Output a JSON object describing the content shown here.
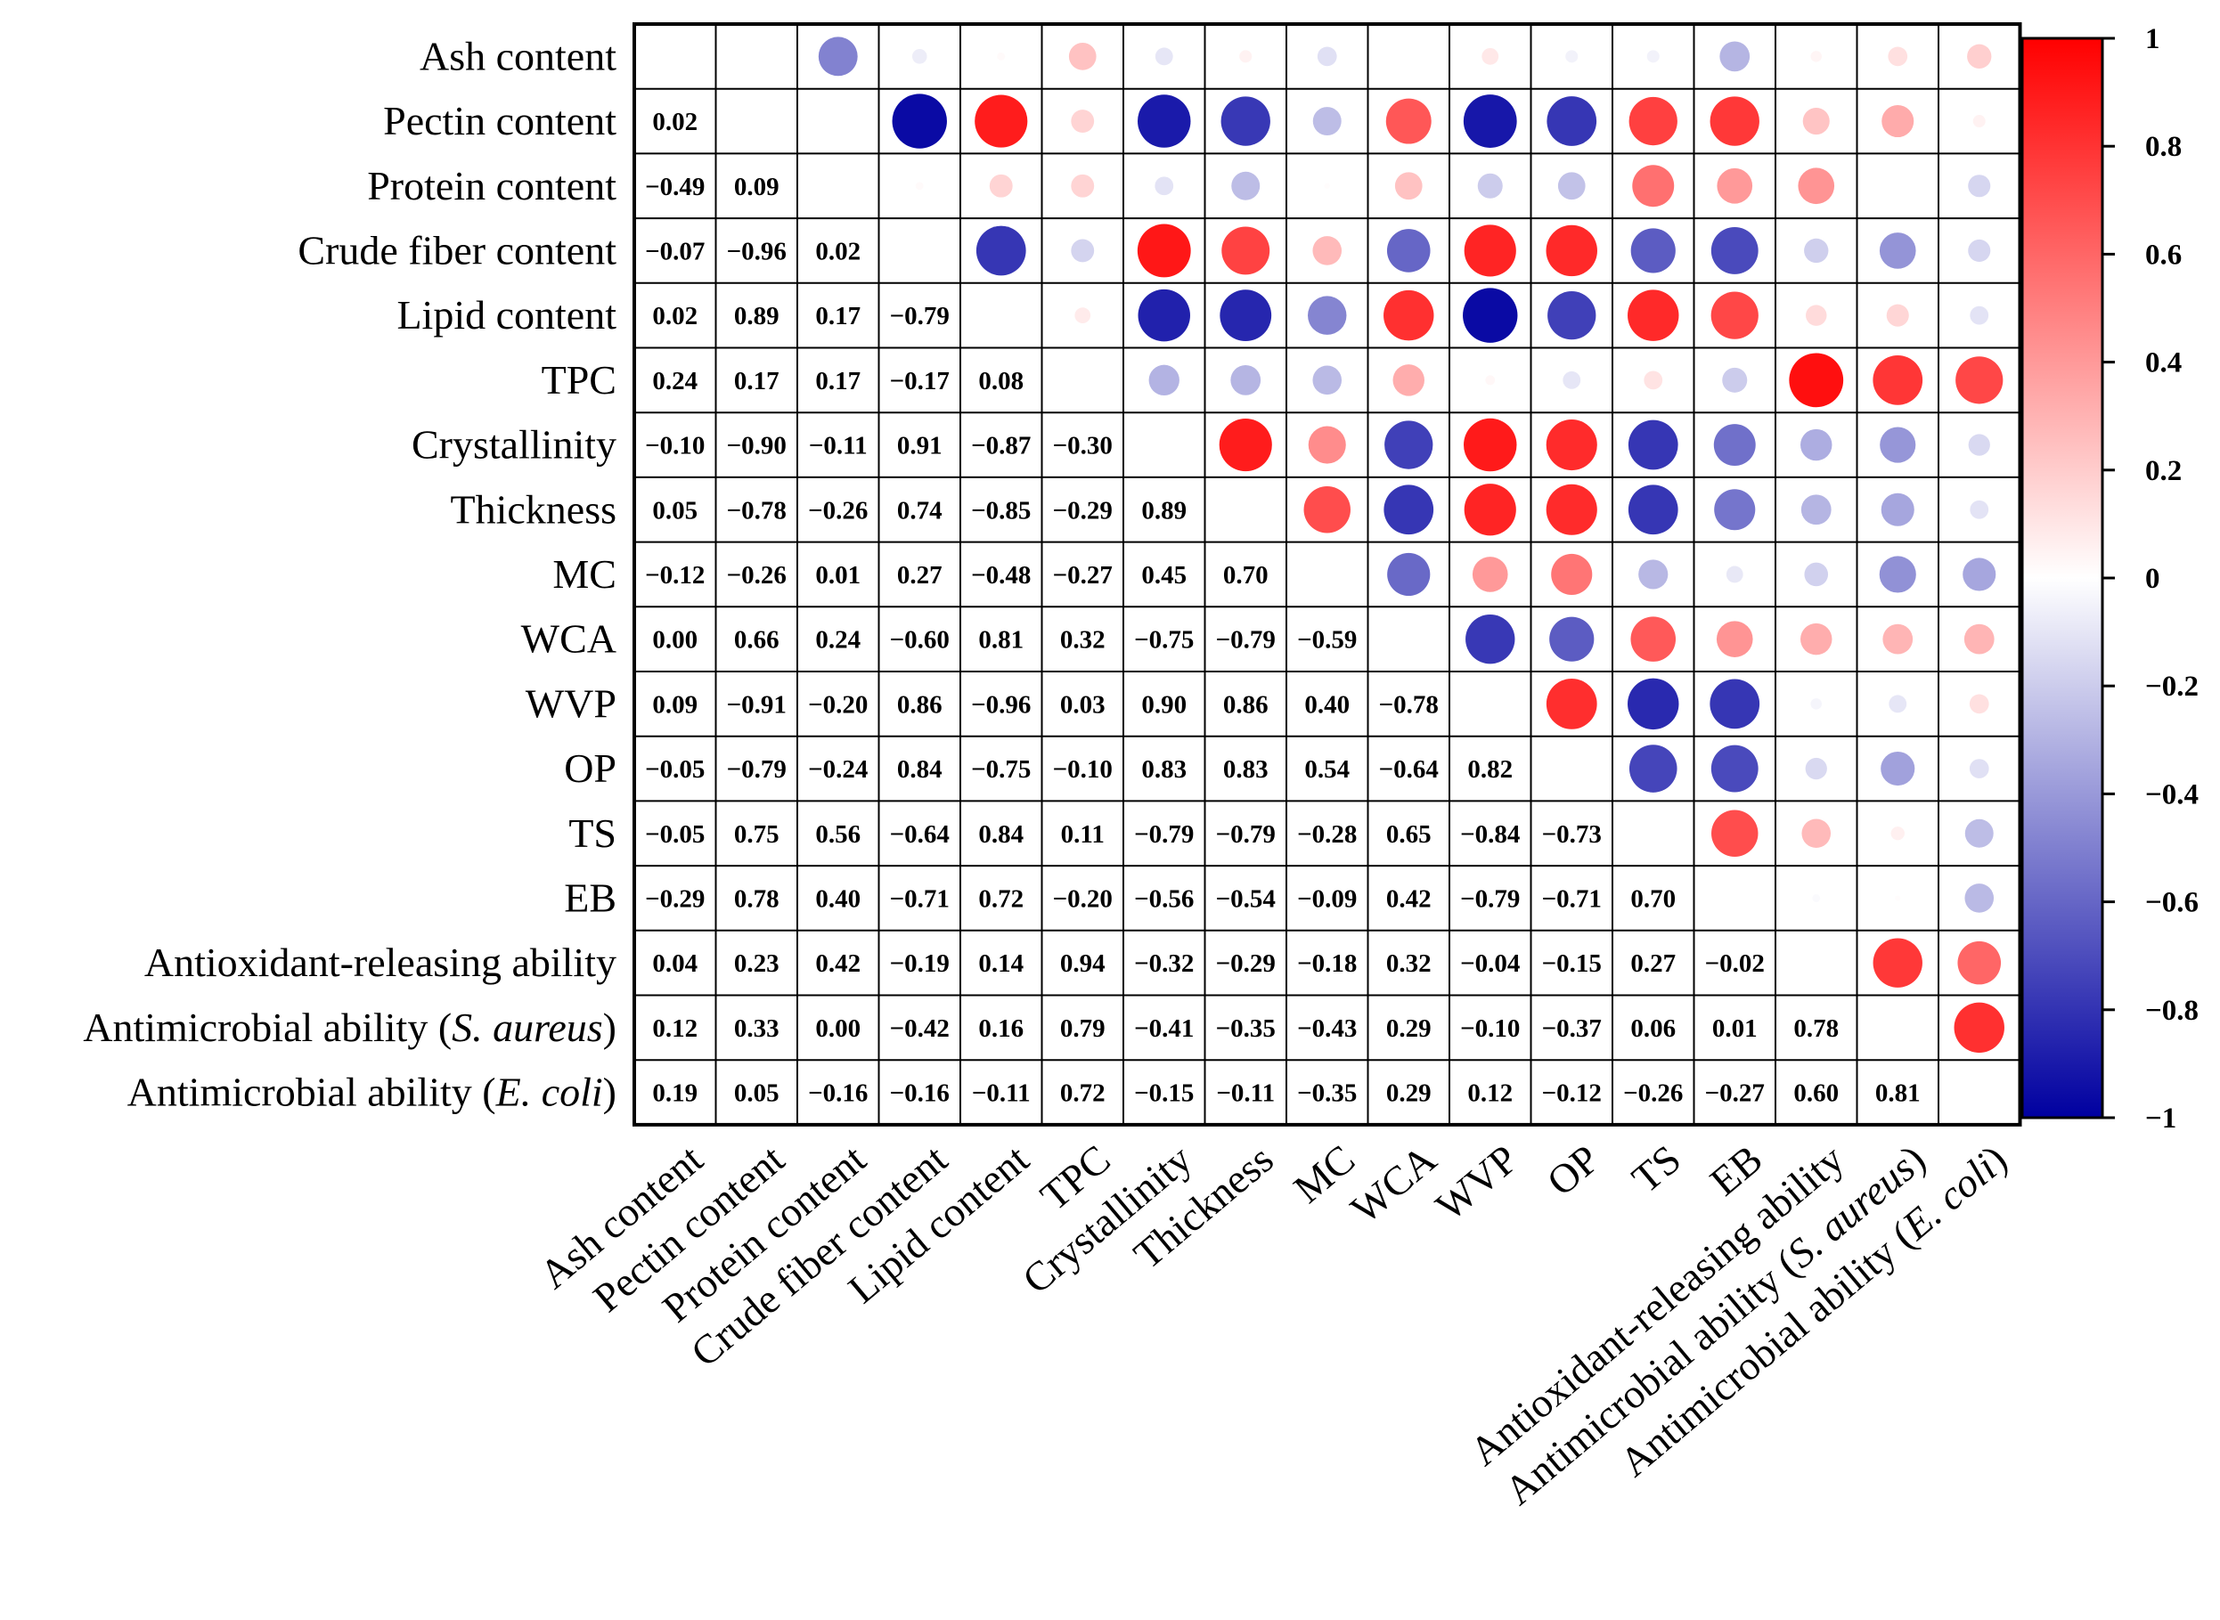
{
  "chart_data": {
    "type": "heatmap",
    "title": "",
    "variables": [
      {
        "name": "Ash content",
        "parts": [
          {
            "t": "Ash content",
            "i": false
          }
        ]
      },
      {
        "name": "Pectin content",
        "parts": [
          {
            "t": "Pectin content",
            "i": false
          }
        ]
      },
      {
        "name": "Protein content",
        "parts": [
          {
            "t": "Protein content",
            "i": false
          }
        ]
      },
      {
        "name": "Crude fiber content",
        "parts": [
          {
            "t": "Crude fiber content",
            "i": false
          }
        ]
      },
      {
        "name": "Lipid content",
        "parts": [
          {
            "t": "Lipid content",
            "i": false
          }
        ]
      },
      {
        "name": "TPC",
        "parts": [
          {
            "t": "TPC",
            "i": false
          }
        ]
      },
      {
        "name": "Crystallinity",
        "parts": [
          {
            "t": "Crystallinity",
            "i": false
          }
        ]
      },
      {
        "name": "Thickness",
        "parts": [
          {
            "t": "Thickness",
            "i": false
          }
        ]
      },
      {
        "name": "MC",
        "parts": [
          {
            "t": "MC",
            "i": false
          }
        ]
      },
      {
        "name": "WCA",
        "parts": [
          {
            "t": "WCA",
            "i": false
          }
        ]
      },
      {
        "name": "WVP",
        "parts": [
          {
            "t": "WVP",
            "i": false
          }
        ]
      },
      {
        "name": "OP",
        "parts": [
          {
            "t": "OP",
            "i": false
          }
        ]
      },
      {
        "name": "TS",
        "parts": [
          {
            "t": "TS",
            "i": false
          }
        ]
      },
      {
        "name": "EB",
        "parts": [
          {
            "t": "EB",
            "i": false
          }
        ]
      },
      {
        "name": "Antioxidant-releasing ability",
        "parts": [
          {
            "t": "Antioxidant-releasing ability",
            "i": false
          }
        ]
      },
      {
        "name": "Antimicrobial ability (S. aureus)",
        "parts": [
          {
            "t": "Antimicrobial ability (",
            "i": false
          },
          {
            "t": "S. aureus",
            "i": true
          },
          {
            "t": ")",
            "i": false
          }
        ]
      },
      {
        "name": "Antimicrobial ability (E. coli)",
        "parts": [
          {
            "t": "Antimicrobial ability (",
            "i": false
          },
          {
            "t": "E. coli",
            "i": true
          },
          {
            "t": ")",
            "i": false
          }
        ]
      }
    ],
    "lower_triangle": [
      [],
      [
        "0.02"
      ],
      [
        "−0.49",
        "0.09"
      ],
      [
        "−0.07",
        "−0.96",
        "0.02"
      ],
      [
        "0.02",
        "0.89",
        "0.17",
        "−0.79"
      ],
      [
        "0.24",
        "0.17",
        "0.17",
        "−0.17",
        "0.08"
      ],
      [
        "−0.10",
        "−0.90",
        "−0.11",
        "0.91",
        "−0.87",
        "−0.30"
      ],
      [
        "0.05",
        "−0.78",
        "−0.26",
        "0.74",
        "−0.85",
        "−0.29",
        "0.89"
      ],
      [
        "−0.12",
        "−0.26",
        "0.01",
        "0.27",
        "−0.48",
        "−0.27",
        "0.45",
        "0.70"
      ],
      [
        "0.00",
        "0.66",
        "0.24",
        "−0.60",
        "0.81",
        "0.32",
        "−0.75",
        "−0.79",
        "−0.59"
      ],
      [
        "0.09",
        "−0.91",
        "−0.20",
        "0.86",
        "−0.96",
        "0.03",
        "0.90",
        "0.86",
        "0.40",
        "−0.78"
      ],
      [
        "−0.05",
        "−0.79",
        "−0.24",
        "0.84",
        "−0.75",
        "−0.10",
        "0.83",
        "0.83",
        "0.54",
        "−0.64",
        "0.82"
      ],
      [
        "−0.05",
        "0.75",
        "0.56",
        "−0.64",
        "0.84",
        "0.11",
        "−0.79",
        "−0.79",
        "−0.28",
        "0.65",
        "−0.84",
        "−0.73"
      ],
      [
        "−0.29",
        "0.78",
        "0.40",
        "−0.71",
        "0.72",
        "−0.20",
        "−0.56",
        "−0.54",
        "−0.09",
        "0.42",
        "−0.79",
        "−0.71",
        "0.70"
      ],
      [
        "0.04",
        "0.23",
        "0.42",
        "−0.19",
        "0.14",
        "0.94",
        "−0.32",
        "−0.29",
        "−0.18",
        "0.32",
        "−0.04",
        "−0.15",
        "0.27",
        "−0.02"
      ],
      [
        "0.12",
        "0.33",
        "0.00",
        "−0.42",
        "0.16",
        "0.79",
        "−0.41",
        "−0.35",
        "−0.43",
        "0.29",
        "−0.10",
        "−0.37",
        "0.06",
        "0.01",
        "0.78"
      ],
      [
        "0.19",
        "0.05",
        "−0.16",
        "−0.16",
        "−0.11",
        "0.72",
        "−0.15",
        "−0.11",
        "−0.35",
        "0.29",
        "0.12",
        "−0.12",
        "−0.26",
        "−0.27",
        "0.60",
        "0.81"
      ]
    ],
    "upper_circles_note": "circle values drawn above the diagonal (approximate, read from circle size and colour)",
    "upper_triangle": [
      [
        null,
        null,
        -0.49,
        -0.07,
        0.02,
        0.24,
        -0.1,
        0.05,
        -0.12,
        0.0,
        0.09,
        -0.05,
        -0.05,
        -0.29,
        0.04,
        0.12,
        0.19
      ],
      [
        null,
        null,
        null,
        -0.96,
        0.89,
        0.17,
        -0.9,
        -0.78,
        -0.26,
        0.66,
        -0.91,
        -0.79,
        0.75,
        0.78,
        0.23,
        0.33,
        0.05
      ],
      [
        null,
        null,
        null,
        0.02,
        0.17,
        0.17,
        -0.11,
        -0.26,
        0.01,
        0.24,
        -0.2,
        -0.24,
        0.56,
        0.4,
        0.42,
        0.0,
        -0.16
      ],
      [
        null,
        null,
        null,
        null,
        -0.79,
        -0.17,
        0.91,
        0.74,
        0.27,
        -0.6,
        0.86,
        0.84,
        -0.64,
        -0.71,
        -0.19,
        -0.42,
        -0.16
      ],
      [
        null,
        null,
        null,
        null,
        null,
        0.08,
        -0.87,
        -0.85,
        -0.48,
        0.81,
        -0.96,
        -0.75,
        0.84,
        0.72,
        0.14,
        0.16,
        -0.11
      ],
      [
        null,
        null,
        null,
        null,
        null,
        null,
        -0.3,
        -0.29,
        -0.27,
        0.32,
        0.03,
        -0.1,
        0.11,
        -0.2,
        0.94,
        0.79,
        0.72
      ],
      [
        null,
        null,
        null,
        null,
        null,
        null,
        null,
        0.89,
        0.45,
        -0.75,
        0.9,
        0.83,
        -0.79,
        -0.56,
        -0.32,
        -0.41,
        -0.15
      ],
      [
        null,
        null,
        null,
        null,
        null,
        null,
        null,
        null,
        0.7,
        -0.79,
        0.86,
        0.83,
        -0.79,
        -0.54,
        -0.29,
        -0.35,
        -0.11
      ],
      [
        null,
        null,
        null,
        null,
        null,
        null,
        null,
        null,
        null,
        -0.59,
        0.4,
        0.54,
        -0.28,
        -0.09,
        -0.18,
        -0.43,
        -0.35
      ],
      [
        null,
        null,
        null,
        null,
        null,
        null,
        null,
        null,
        null,
        null,
        -0.78,
        -0.64,
        0.65,
        0.42,
        0.32,
        0.29,
        0.29
      ],
      [
        null,
        null,
        null,
        null,
        null,
        null,
        null,
        null,
        null,
        null,
        null,
        0.82,
        -0.84,
        -0.79,
        -0.04,
        -0.1,
        0.12
      ],
      [
        null,
        null,
        null,
        null,
        null,
        null,
        null,
        null,
        null,
        null,
        null,
        null,
        -0.73,
        -0.71,
        -0.15,
        -0.37,
        -0.12
      ],
      [
        null,
        null,
        null,
        null,
        null,
        null,
        null,
        null,
        null,
        null,
        null,
        null,
        null,
        0.7,
        0.27,
        0.06,
        -0.26
      ],
      [
        null,
        null,
        null,
        null,
        null,
        null,
        null,
        null,
        null,
        null,
        null,
        null,
        null,
        null,
        -0.02,
        0.01,
        -0.27
      ],
      [
        null,
        null,
        null,
        null,
        null,
        null,
        null,
        null,
        null,
        null,
        null,
        null,
        null,
        null,
        null,
        0.78,
        0.6
      ],
      [
        null,
        null,
        null,
        null,
        null,
        null,
        null,
        null,
        null,
        null,
        null,
        null,
        null,
        null,
        null,
        null,
        0.81
      ],
      [
        null,
        null,
        null,
        null,
        null,
        null,
        null,
        null,
        null,
        null,
        null,
        null,
        null,
        null,
        null,
        null,
        null
      ]
    ],
    "colorbar": {
      "range": [
        -1,
        1
      ],
      "ticks": [
        1,
        0.8,
        0.6,
        0.4,
        0.2,
        0,
        -0.2,
        -0.4,
        -0.6,
        -0.8,
        -1
      ],
      "tick_labels": [
        "1",
        "0.8",
        "0.6",
        "0.4",
        "0.2",
        "0",
        "−0.2",
        "−0.4",
        "−0.6",
        "−0.8",
        "−1"
      ],
      "colors": {
        "negative": "#0000a0",
        "zero": "#ffffff",
        "positive": "#ff0000"
      }
    },
    "legend_position": "right"
  }
}
